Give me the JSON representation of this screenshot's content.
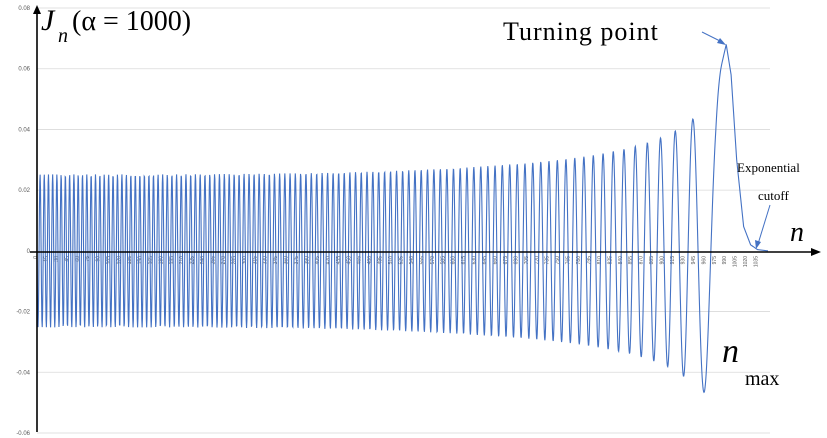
{
  "chart_data": {
    "type": "line",
    "title": "",
    "ylabel": "J_n(α = 1000)",
    "ylabel_parts": {
      "symbol": "J",
      "subscript": "n",
      "args": "(α = 1000)"
    },
    "xlabel": "n",
    "ylim": [
      -0.06,
      0.08
    ],
    "xlim": [
      0,
      1050
    ],
    "y_ticks": [
      "0.08",
      "0.06",
      "0.04",
      "0.02",
      "0",
      "-0.02",
      "-0.04",
      "-0.06"
    ],
    "y_tick_values": [
      0.08,
      0.06,
      0.04,
      0.02,
      0,
      -0.02,
      -0.04,
      -0.06
    ],
    "x_ticks": [
      "0",
      "15",
      "30",
      "45",
      "60",
      "75",
      "90",
      "105",
      "120",
      "135",
      "150",
      "165",
      "180",
      "195",
      "210",
      "225",
      "240",
      "255",
      "270",
      "285",
      "300",
      "315",
      "330",
      "345",
      "360",
      "375",
      "390",
      "405",
      "420",
      "435",
      "450",
      "465",
      "480",
      "495",
      "510",
      "525",
      "540",
      "555",
      "570",
      "585",
      "600",
      "615",
      "630",
      "645",
      "660",
      "675",
      "690",
      "705",
      "720",
      "735",
      "750",
      "765",
      "780",
      "795",
      "810",
      "825",
      "840",
      "855",
      "870",
      "885",
      "900",
      "915",
      "930",
      "945",
      "960",
      "975",
      "990",
      "1005",
      "1020",
      "1035"
    ],
    "grid": true,
    "series": [
      {
        "color": "#4472c4",
        "envelope_x": [
          0,
          100,
          200,
          300,
          400,
          500,
          600,
          700,
          760,
          800,
          850,
          880,
          910,
          940,
          960,
          975,
          982,
          990,
          997,
          1005,
          1015,
          1025,
          1035,
          1050
        ],
        "envelope_y": [
          0.0252,
          0.0252,
          0.0252,
          0.0254,
          0.0256,
          0.0262,
          0.0272,
          0.0288,
          0.0302,
          0.0315,
          0.0338,
          0.0358,
          0.0385,
          0.043,
          0.047,
          0.052,
          0.06,
          0.068,
          0.058,
          0.03,
          0.008,
          0.002,
          0.0004,
          0.0
        ]
      }
    ],
    "annotations": {
      "turning_point": {
        "text": "Turning point",
        "x": 990,
        "y": 0.068
      },
      "exponential_cutoff": {
        "line1": "Exponential",
        "line2": "cutoff",
        "x": 1020,
        "y": 0.002
      },
      "n_max": {
        "symbol": "n",
        "subscript": "max"
      }
    }
  }
}
